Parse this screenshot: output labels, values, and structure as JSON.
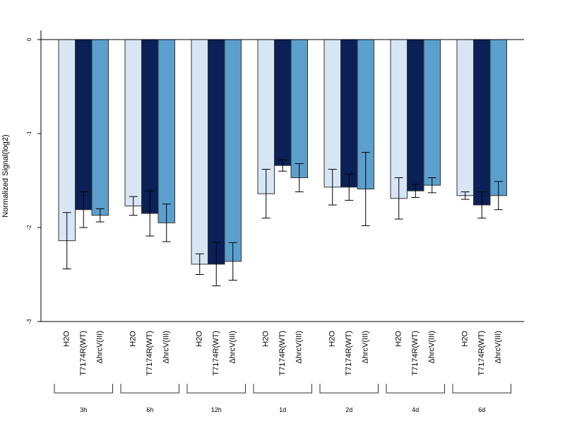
{
  "chart_data": {
    "type": "bar",
    "title": "",
    "xlabel": "",
    "ylabel": "Normalized Signal(log2)",
    "ylim": [
      -3,
      0.1
    ],
    "yticks": [
      0,
      -1,
      -2,
      -3
    ],
    "ytick_labels": [
      "0",
      "-1",
      "-2",
      "-3"
    ],
    "groups": [
      "3h",
      "6h",
      "12h",
      "1d",
      "2d",
      "4d",
      "6d"
    ],
    "series": [
      {
        "name": "H2O",
        "color": "#d6e6f5",
        "values": [
          -2.14,
          -1.77,
          -2.39,
          -1.64,
          -1.57,
          -1.69,
          -1.66
        ],
        "errors": [
          0.3,
          0.1,
          0.11,
          0.26,
          0.19,
          0.22,
          0.04
        ]
      },
      {
        "name": "T7174R(WT)",
        "color": "#0a2056",
        "values": [
          -1.81,
          -1.85,
          -2.39,
          -1.34,
          -1.57,
          -1.61,
          -1.76
        ],
        "errors": [
          0.19,
          0.24,
          0.23,
          0.06,
          0.14,
          0.07,
          0.14
        ]
      },
      {
        "name": "ΔhrcV(III)",
        "color": "#5b9fcd",
        "values": [
          -1.87,
          -1.95,
          -2.36,
          -1.47,
          -1.59,
          -1.55,
          -1.66
        ],
        "errors": [
          0.07,
          0.2,
          0.2,
          0.15,
          0.39,
          0.08,
          0.15
        ]
      }
    ],
    "grid": false,
    "legend": "none"
  }
}
